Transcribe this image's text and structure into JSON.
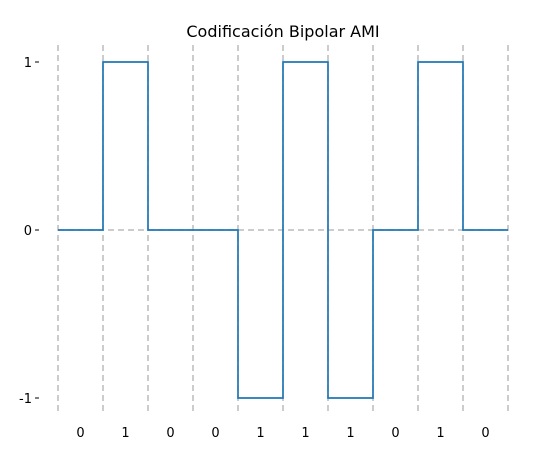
{
  "chart_data": {
    "type": "line",
    "title": "Codificación Bipolar AMI",
    "xlabel": "",
    "ylabel": "",
    "bits": [
      "0",
      "1",
      "0",
      "0",
      "1",
      "1",
      "1",
      "0",
      "1",
      "0"
    ],
    "values": [
      0,
      1,
      0,
      0,
      -1,
      1,
      -1,
      0,
      1,
      0
    ],
    "y_ticks": [
      1,
      0,
      -1
    ],
    "y_tick_labels": [
      "1",
      "0",
      "-1"
    ],
    "ylim": [
      -1.1,
      1.1
    ],
    "grid": "dashed vertical lines at bit boundaries, dashed horizontal line at 0",
    "colors": {
      "signal": "#1f77b4",
      "grid": "#bbbbbb"
    }
  }
}
